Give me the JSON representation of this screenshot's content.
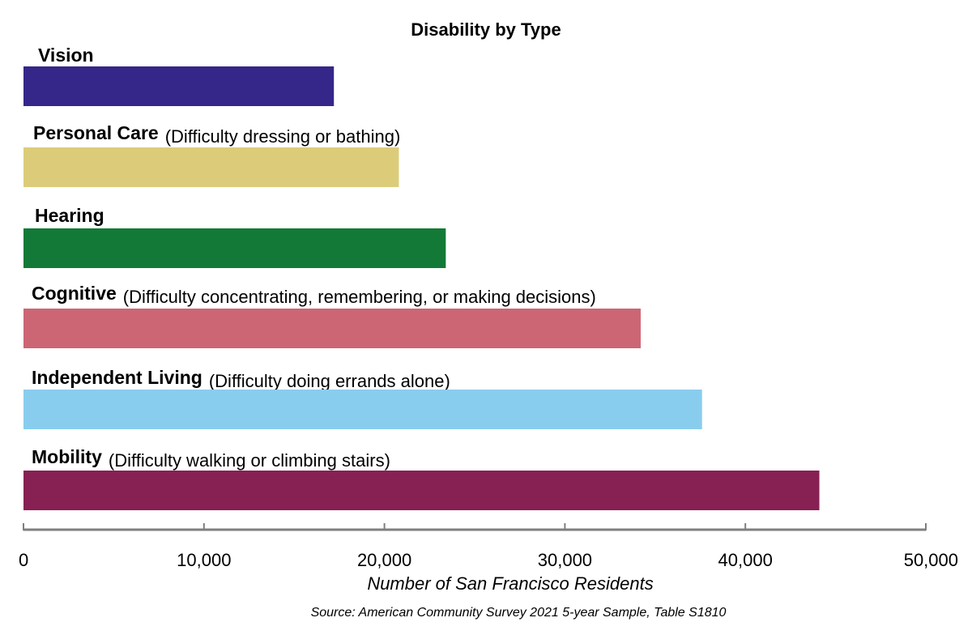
{
  "chart_data": {
    "type": "bar",
    "orientation": "horizontal",
    "title": "Disability by Type",
    "categories": [
      {
        "label": "Vision",
        "description": ""
      },
      {
        "label": "Personal Care",
        "description": "(Difficulty dressing or bathing)"
      },
      {
        "label": "Hearing",
        "description": ""
      },
      {
        "label": "Cognitive",
        "description": "(Difficulty concentrating, remembering, or making decisions)"
      },
      {
        "label": "Independent Living",
        "description": "(Difficulty doing errands alone)"
      },
      {
        "label": "Mobility",
        "description": "(Difficulty walking or climbing stairs)"
      }
    ],
    "values": [
      17200,
      20800,
      23400,
      34200,
      37600,
      44100
    ],
    "colors": [
      "#35268a",
      "#dccc7a",
      "#127a36",
      "#cc6674",
      "#89cdee",
      "#872153"
    ],
    "xlabel": "Number of San Francisco Residents",
    "xlim": [
      0,
      50000
    ],
    "xticks": [
      0,
      10000,
      20000,
      30000,
      40000,
      50000
    ],
    "xtick_labels": [
      "0",
      "10,000",
      "20,000",
      "30,000",
      "40,000",
      "50,000"
    ],
    "grid": false,
    "source": "Source: American Community Survey 2021 5-year Sample, Table S1810"
  }
}
